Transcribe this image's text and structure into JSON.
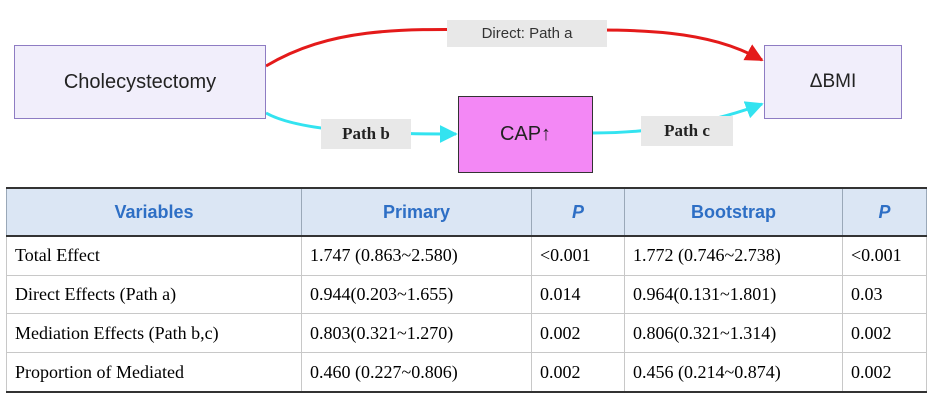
{
  "diagram": {
    "nodes": {
      "cholecystectomy": "Cholecystectomy",
      "bmi": "ΔBMI",
      "cap": "CAP↑"
    },
    "paths": {
      "direct": "Direct: Path a",
      "path_b": "Path b",
      "path_c": "Path c"
    },
    "colors": {
      "direct_arrow": "#e41a1a",
      "mediation_arrow": "#33e3f0",
      "cap_fill": "#f388f5",
      "node_fill": "#f1eefb",
      "node_border": "#8e7cc3"
    }
  },
  "table": {
    "headers": [
      "Variables",
      "Primary",
      "P",
      "Bootstrap",
      "P"
    ],
    "rows": [
      [
        "Total Effect",
        "1.747 (0.863~2.580)",
        "<0.001",
        "1.772 (0.746~2.738)",
        "<0.001"
      ],
      [
        "Direct Effects (Path a)",
        "0.944(0.203~1.655)",
        "0.014",
        "0.964(0.131~1.801)",
        "0.03"
      ],
      [
        "Mediation Effects (Path b,c)",
        "0.803(0.321~1.270)",
        "0.002",
        "0.806(0.321~1.314)",
        "0.002"
      ],
      [
        "Proportion of Mediated",
        "0.460 (0.227~0.806)",
        "0.002",
        "0.456 (0.214~0.874)",
        "0.002"
      ]
    ],
    "header_color": "#2e6fc5",
    "header_background": "#dbe6f4"
  }
}
